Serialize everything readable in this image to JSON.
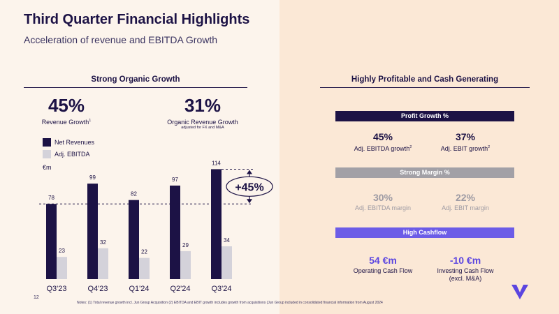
{
  "header": {
    "title": "Third Quarter Financial Highlights",
    "subtitle": "Acceleration of revenue and EBITDA Growth"
  },
  "left": {
    "section_title": "Strong Organic Growth",
    "kpi1": {
      "value": "45%",
      "label": "Revenue Growth",
      "sup": "1"
    },
    "kpi2": {
      "value": "31%",
      "label": "Organic Revenue Growth",
      "note": "adjusted for FX and M&A"
    },
    "legend": {
      "net_revenues": "Net Revenues",
      "adj_ebitda": "Adj. EBITDA"
    },
    "unit": "€m",
    "growth_callout": "+45%"
  },
  "chart_data": {
    "type": "bar",
    "categories": [
      "Q3'23",
      "Q4'23",
      "Q1'24",
      "Q2'24",
      "Q3'24"
    ],
    "series": [
      {
        "name": "Net Revenues",
        "values": [
          78,
          99,
          82,
          97,
          114
        ],
        "color": "#1c1245"
      },
      {
        "name": "Adj. EBITDA",
        "values": [
          23,
          32,
          22,
          29,
          34
        ],
        "color": "#d4d2da"
      }
    ],
    "ylabel": "€m",
    "ylim": [
      0,
      125
    ],
    "legend": "top-left",
    "grid": false,
    "annotation": "+45%"
  },
  "right": {
    "section_title": "Highly Profitable and Cash Generating",
    "profit_banner": "Profit Growth %",
    "profit_metrics": [
      {
        "value": "45%",
        "label": "Adj. EBITDA growth",
        "sup": "2"
      },
      {
        "value": "37%",
        "label": "Adj. EBIT growth",
        "sup": "2"
      }
    ],
    "margin_banner": "Strong Margin %",
    "margin_metrics": [
      {
        "value": "30%",
        "label": "Adj. EBITDA margin"
      },
      {
        "value": "22%",
        "label": "Adj. EBIT margin"
      }
    ],
    "cash_banner": "High Cashflow",
    "cash_metrics": [
      {
        "value": "54 €m",
        "label": "Operating Cash Flow",
        "label2": ""
      },
      {
        "value": "-10 €m",
        "label": "Investing Cash Flow",
        "label2": "(excl. M&A)"
      }
    ]
  },
  "footer": {
    "page": "12",
    "notes": "Notes: (1) Total revenue growth incl. Jun Group Acquisition (2) EBITDA and EBIT growth includes growth from acquisitions (Jun Group included in consolidated financial information from August 2024"
  },
  "colors": {
    "navy": "#1c1245",
    "grey_bar": "#d4d2da",
    "grey_banner": "#a2a0a6",
    "purple": "#6c5ce7",
    "grey_text": "#9d9aa3",
    "purple_text": "#5b45e0",
    "left_bg": "#fcf4ec",
    "right_bg": "#fbe8d6"
  }
}
